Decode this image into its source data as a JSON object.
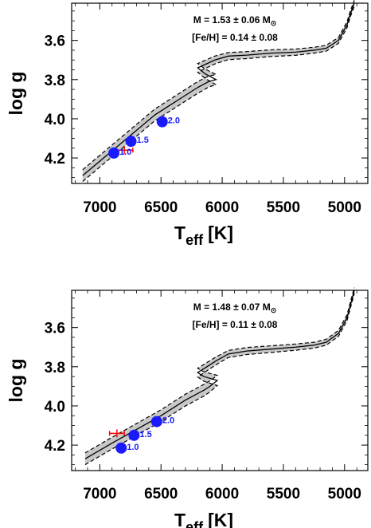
{
  "chart_data": [
    {
      "type": "line",
      "xlabel": "T",
      "xlabel_sub": "eff",
      "xlabel_unit": "[K]",
      "ylabel": "log g",
      "xlim": [
        7230,
        4810
      ],
      "ylim": [
        4.33,
        3.41
      ],
      "xticks": [
        "7000",
        "6500",
        "6000",
        "5500",
        "5000"
      ],
      "yticks": [
        "3.6",
        "3.8",
        "4.0",
        "4.2"
      ],
      "annotations": {
        "mass_text": "M = 1.53 ± 0.06 M",
        "sun_symbol": "⊙",
        "feh_text": "[Fe/H] = 0.14 ± 0.08"
      },
      "observation": {
        "teff": 6800,
        "logg": 4.16,
        "teff_err": 70,
        "logg_err": 0.02,
        "color": "#ff0000"
      },
      "age_markers": [
        {
          "label": "1.0",
          "teff": 6885,
          "logg": 4.175
        },
        {
          "label": "1.5",
          "teff": 6745,
          "logg": 4.115
        },
        {
          "label": "2.0",
          "teff": 6490,
          "logg": 4.015
        }
      ],
      "track": {
        "teff": [
          7140,
          6950,
          6750,
          6550,
          6350,
          6200,
          6110,
          6050,
          6140,
          6200,
          6060,
          5950,
          5800,
          5600,
          5400,
          5250,
          5150,
          5050,
          4980,
          4950,
          4920
        ],
        "logg": [
          4.29,
          4.19,
          4.085,
          3.98,
          3.9,
          3.84,
          3.81,
          3.8,
          3.77,
          3.74,
          3.7,
          3.68,
          3.675,
          3.665,
          3.66,
          3.65,
          3.64,
          3.6,
          3.52,
          3.46,
          3.41
        ]
      },
      "band_halfwidth_logg": [
        0.03,
        0.03,
        0.03,
        0.03,
        0.03,
        0.03,
        0.028,
        0.026,
        0.024,
        0.022,
        0.02,
        0.018,
        0.018,
        0.017,
        0.016,
        0.015,
        0.015,
        0.015,
        0.015,
        0.015,
        0.015
      ],
      "colors": {
        "band": "#c8c8c8",
        "line": "#000000",
        "marker": "#1a1aff",
        "marker_label": "#1a1aff"
      }
    },
    {
      "type": "line",
      "xlabel": "T",
      "xlabel_sub": "eff",
      "xlabel_unit": "[K]",
      "ylabel": "log g",
      "xlim": [
        7230,
        4810
      ],
      "ylim": [
        4.33,
        3.41
      ],
      "xticks": [
        "7000",
        "6500",
        "6000",
        "5500",
        "5000"
      ],
      "yticks": [
        "3.6",
        "3.8",
        "4.0",
        "4.2"
      ],
      "annotations": {
        "mass_text": "M = 1.48 ± 0.07 M",
        "sun_symbol": "⊙",
        "feh_text": "[Fe/H] = 0.11 ± 0.08"
      },
      "observation": {
        "teff": 6860,
        "logg": 4.14,
        "teff_err": 60,
        "logg_err": 0.02,
        "color": "#ff0000"
      },
      "age_markers": [
        {
          "label": "1.0",
          "teff": 6825,
          "logg": 4.215
        },
        {
          "label": "1.5",
          "teff": 6720,
          "logg": 4.15
        },
        {
          "label": "2.0",
          "teff": 6535,
          "logg": 4.08
        }
      ],
      "track": {
        "teff": [
          7120,
          6900,
          6700,
          6500,
          6300,
          6150,
          6100,
          6040,
          6150,
          6200,
          6050,
          5950,
          5800,
          5600,
          5400,
          5250,
          5150,
          5050,
          4980,
          4950,
          4920
        ],
        "logg": [
          4.27,
          4.19,
          4.12,
          4.05,
          3.97,
          3.92,
          3.9,
          3.87,
          3.85,
          3.83,
          3.77,
          3.735,
          3.72,
          3.71,
          3.7,
          3.69,
          3.675,
          3.63,
          3.55,
          3.48,
          3.41
        ]
      },
      "band_halfwidth_logg": [
        0.03,
        0.03,
        0.03,
        0.03,
        0.03,
        0.03,
        0.028,
        0.026,
        0.024,
        0.022,
        0.02,
        0.018,
        0.018,
        0.017,
        0.016,
        0.015,
        0.015,
        0.015,
        0.015,
        0.015,
        0.015
      ],
      "colors": {
        "band": "#c8c8c8",
        "line": "#000000",
        "marker": "#1a1aff",
        "marker_label": "#1a1aff"
      }
    }
  ]
}
